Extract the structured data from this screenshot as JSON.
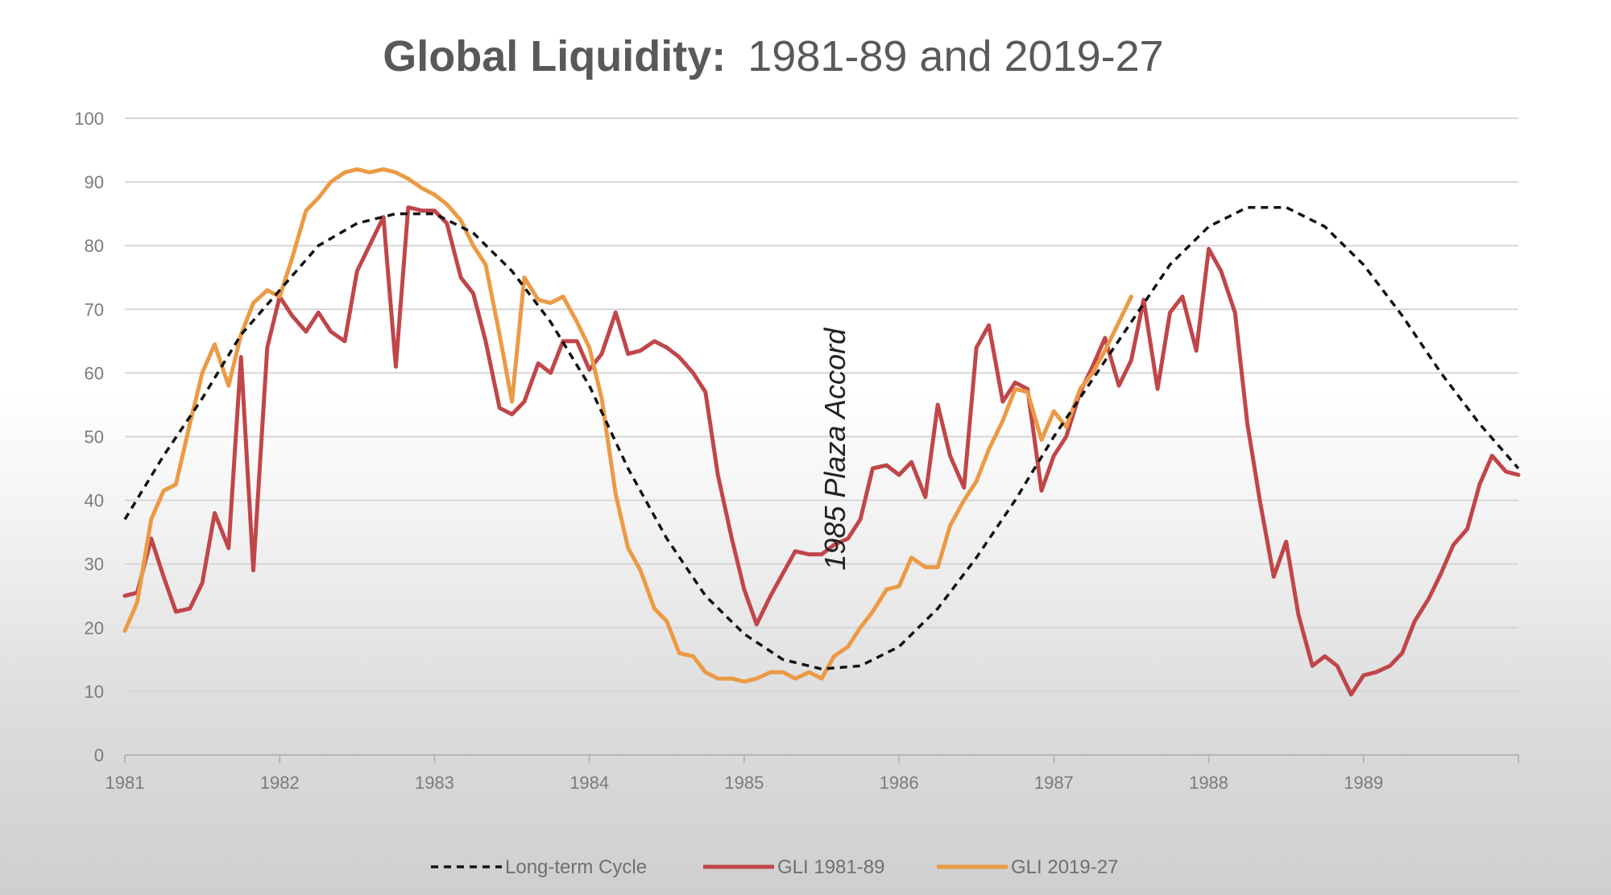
{
  "chart_data": {
    "type": "line",
    "title_bold": "Global Liquidity:",
    "title_rest": "1981-89 and 2019-27",
    "xlabel": "",
    "ylabel": "",
    "ylim": [
      0,
      100
    ],
    "xlim": [
      1981.0,
      1990.0
    ],
    "yticks": [
      "0",
      "10",
      "20",
      "30",
      "40",
      "50",
      "60",
      "70",
      "80",
      "90",
      "100"
    ],
    "xticks": [
      "1981",
      "1982",
      "1983",
      "1984",
      "1985",
      "1986",
      "1987",
      "1988",
      "1989"
    ],
    "grid": true,
    "legend_position": "bottom",
    "annotation": {
      "text": "1985 Plaza Accord",
      "x": 1985.65,
      "y": 48
    },
    "series": [
      {
        "name": "Long-term Cycle",
        "color": "#111111",
        "style": "dashed",
        "x": [
          1981.0,
          1981.25,
          1981.5,
          1981.75,
          1982.0,
          1982.25,
          1982.5,
          1982.75,
          1983.0,
          1983.25,
          1983.5,
          1983.75,
          1984.0,
          1984.25,
          1984.5,
          1984.75,
          1985.0,
          1985.25,
          1985.5,
          1985.75,
          1986.0,
          1986.25,
          1986.5,
          1986.75,
          1987.0,
          1987.25,
          1987.5,
          1987.75,
          1988.0,
          1988.25,
          1988.5,
          1988.75,
          1989.0,
          1989.25,
          1989.5,
          1989.75,
          1990.0
        ],
        "values": [
          37,
          47,
          56,
          66,
          73,
          80,
          83.5,
          85,
          85,
          82,
          76,
          68,
          58,
          45,
          34,
          25,
          19,
          15,
          13.5,
          14,
          17,
          23,
          31,
          40,
          50,
          59,
          68,
          77,
          83,
          86,
          86,
          83,
          77,
          69,
          60,
          52,
          45
        ]
      },
      {
        "name": "GLI 1981-89",
        "color": "#c0464a",
        "style": "solid",
        "x": [
          1981.0,
          1981.08,
          1981.17,
          1981.25,
          1981.33,
          1981.42,
          1981.5,
          1981.58,
          1981.67,
          1981.75,
          1981.83,
          1981.92,
          1982.0,
          1982.08,
          1982.17,
          1982.25,
          1982.33,
          1982.42,
          1982.5,
          1982.58,
          1982.67,
          1982.75,
          1982.83,
          1982.92,
          1983.0,
          1983.08,
          1983.17,
          1983.25,
          1983.33,
          1983.42,
          1983.5,
          1983.58,
          1983.67,
          1983.75,
          1983.83,
          1983.92,
          1984.0,
          1984.08,
          1984.17,
          1984.25,
          1984.33,
          1984.42,
          1984.5,
          1984.58,
          1984.67,
          1984.75,
          1984.83,
          1984.92,
          1985.0,
          1985.08,
          1985.17,
          1985.25,
          1985.33,
          1985.42,
          1985.5,
          1985.58,
          1985.67,
          1985.75,
          1985.83,
          1985.92,
          1986.0,
          1986.08,
          1986.17,
          1986.25,
          1986.33,
          1986.42,
          1986.5,
          1986.58,
          1986.67,
          1986.75,
          1986.83,
          1986.92,
          1987.0,
          1987.08,
          1987.17,
          1987.25,
          1987.33,
          1987.42,
          1987.5,
          1987.58,
          1987.67,
          1987.75,
          1987.83,
          1987.92,
          1988.0,
          1988.08,
          1988.17,
          1988.25,
          1988.33,
          1988.42,
          1988.5,
          1988.58,
          1988.67,
          1988.75,
          1988.83,
          1988.92,
          1989.0,
          1989.08,
          1989.17,
          1989.25,
          1989.33,
          1989.42,
          1989.5,
          1989.58,
          1989.67,
          1989.75,
          1989.83,
          1989.92,
          1990.0
        ],
        "values": [
          25,
          25.5,
          34,
          28,
          22.5,
          23,
          27,
          38,
          32.5,
          62.5,
          29,
          64,
          72,
          69,
          66.5,
          69.5,
          66.5,
          65,
          76,
          80,
          84.5,
          61,
          86,
          85.5,
          85.5,
          83.5,
          75,
          72.5,
          65,
          54.5,
          53.5,
          55.5,
          61.5,
          60,
          65,
          65,
          60.5,
          63,
          69.5,
          63,
          63.5,
          65,
          64,
          62.5,
          60,
          57,
          44,
          34,
          26,
          20.5,
          25,
          28.5,
          32,
          31.5,
          31.5,
          33,
          34,
          37,
          45,
          45.5,
          44,
          46,
          40.5,
          55,
          47,
          42,
          64,
          67.5,
          55.5,
          58.5,
          57.5,
          41.5,
          47,
          50,
          57,
          61,
          65.5,
          58,
          62,
          71.5,
          57.5,
          69.5,
          72,
          63.5,
          79.5,
          76,
          69.5,
          52,
          40,
          28,
          33.5,
          22,
          14,
          15.5,
          14,
          9.5,
          12.5,
          13,
          14,
          16,
          21,
          24.5,
          28.5,
          33,
          35.5,
          42.5,
          47,
          44.5,
          44
        ]
      },
      {
        "name": "GLI 2019-27",
        "color": "#eb9a45",
        "style": "solid",
        "x": [
          1981.0,
          1981.08,
          1981.17,
          1981.25,
          1981.33,
          1981.42,
          1981.5,
          1981.58,
          1981.67,
          1981.75,
          1981.83,
          1981.92,
          1982.0,
          1982.08,
          1982.17,
          1982.25,
          1982.33,
          1982.42,
          1982.5,
          1982.58,
          1982.67,
          1982.75,
          1982.83,
          1982.92,
          1983.0,
          1983.08,
          1983.17,
          1983.25,
          1983.33,
          1983.42,
          1983.5,
          1983.58,
          1983.67,
          1983.75,
          1983.83,
          1983.92,
          1984.0,
          1984.08,
          1984.17,
          1984.25,
          1984.33,
          1984.42,
          1984.5,
          1984.58,
          1984.67,
          1984.75,
          1984.83,
          1984.92,
          1985.0,
          1985.08,
          1985.17,
          1985.25,
          1985.33,
          1985.42,
          1985.5,
          1985.58,
          1985.67,
          1985.75,
          1985.83,
          1985.92,
          1986.0,
          1986.08,
          1986.17,
          1986.25,
          1986.33,
          1986.42,
          1986.5,
          1986.58,
          1986.67,
          1986.75,
          1986.83,
          1986.92,
          1987.0,
          1987.08,
          1987.17,
          1987.25,
          1987.33,
          1987.42,
          1987.5,
          1987.58
        ],
        "values": [
          19.5,
          24,
          37,
          41.5,
          42.5,
          52,
          60,
          64.5,
          58,
          66,
          71,
          73,
          72,
          78,
          85.5,
          87.5,
          90,
          91.5,
          92,
          91.5,
          92,
          91.5,
          90.5,
          89,
          88,
          86.5,
          84,
          80,
          77,
          66,
          55.5,
          75,
          71.5,
          71,
          72,
          68,
          64,
          56,
          41,
          32.5,
          29,
          23,
          21,
          16,
          15.5,
          13,
          12,
          12,
          11.5,
          12,
          13,
          13,
          12,
          13,
          12,
          15.5,
          17,
          20,
          22.5,
          26,
          26.5,
          31,
          29.5,
          29.5,
          36,
          40,
          43,
          48,
          52.5,
          57.5,
          57,
          49.5,
          54,
          51.5,
          57.5,
          60,
          63.5,
          68,
          72,
          null
        ]
      }
    ]
  }
}
